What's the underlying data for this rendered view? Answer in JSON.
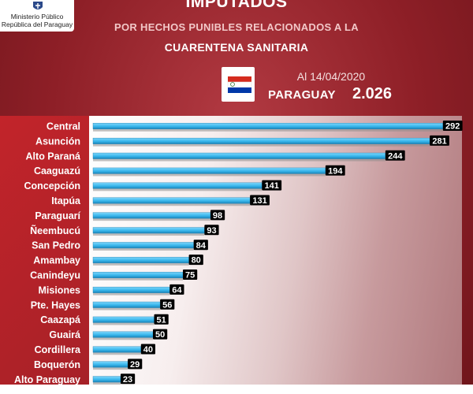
{
  "header": {
    "logo_line1": "Ministerio Público",
    "logo_line2": "República del Paraguay",
    "title": "IMPUTADOS",
    "subtitle1": "POR HECHOS PUNIBLES RELACIONADOS A LA",
    "subtitle2": "CUARENTENA SANITARIA",
    "date": "Al 14/04/2020",
    "country": "PARAGUAY",
    "total": "2.026"
  },
  "colors": {
    "bar": "#38b6ec",
    "bar_dark": "#1a83b8",
    "value_box": "#000000",
    "background": "#8e1f27"
  },
  "chart_data": {
    "type": "bar",
    "orientation": "horizontal",
    "categories": [
      "Central",
      "Asunción",
      "Alto Paraná",
      "Caaguazú",
      "Concepción",
      "Itapúa",
      "Paraguarí",
      "Ñeembucú",
      "San Pedro",
      "Amambay",
      "Canindeyu",
      "Misiones",
      "Pte. Hayes",
      "Caazapá",
      "Guairá",
      "Cordillera",
      "Boquerón",
      "Alto Paraguay"
    ],
    "values": [
      292,
      281,
      244,
      194,
      141,
      131,
      98,
      93,
      84,
      80,
      75,
      64,
      56,
      51,
      50,
      40,
      29,
      23
    ],
    "xlim": [
      0,
      300
    ],
    "legend": "none"
  }
}
